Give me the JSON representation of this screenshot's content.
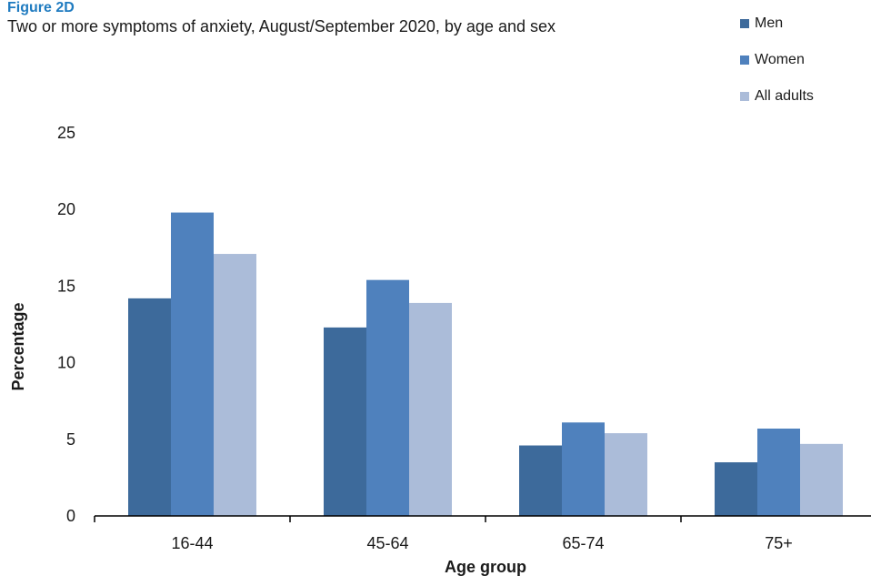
{
  "figure_label": "Figure 2D",
  "chart_data": {
    "type": "bar",
    "title": "Two or more symptoms of anxiety, August/September 2020, by age and sex",
    "xlabel": "Age group",
    "ylabel": "Percentage",
    "categories": [
      "16-44",
      "45-64",
      "65-74",
      "75+"
    ],
    "series": [
      {
        "name": "Men",
        "color": "#3d6a9b",
        "values": [
          14.2,
          12.3,
          4.6,
          3.5
        ]
      },
      {
        "name": "Women",
        "color": "#4f81bd",
        "values": [
          19.8,
          15.4,
          6.1,
          5.7
        ]
      },
      {
        "name": "All adults",
        "color": "#abbcd9",
        "values": [
          17.1,
          13.9,
          5.4,
          4.7
        ]
      }
    ],
    "yticks": [
      "0",
      "5",
      "10",
      "15",
      "20",
      "25"
    ],
    "ylim": [
      0,
      25
    ],
    "grid": false,
    "legend_position": "top-right"
  }
}
